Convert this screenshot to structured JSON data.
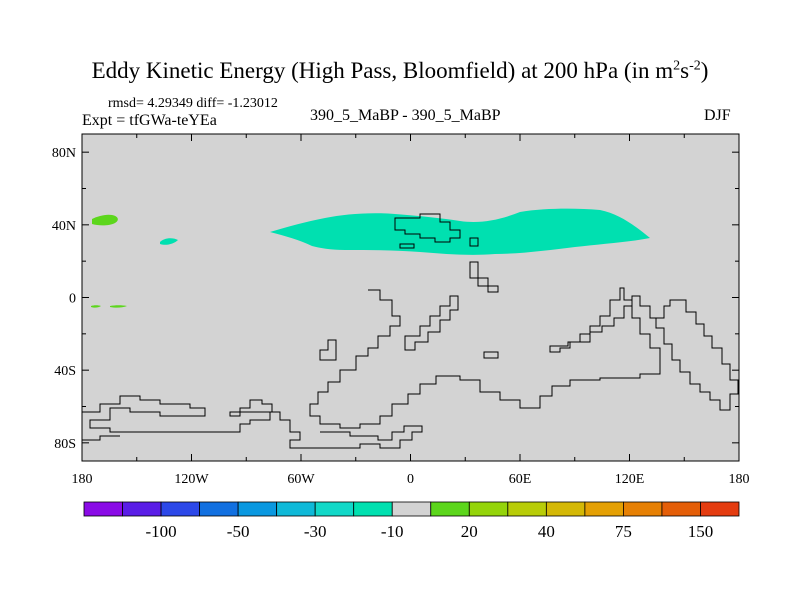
{
  "chart_data": {
    "type": "contour-map",
    "title_text": "Eddy Kinetic Energy (High Pass, Bloomfield) at 200 hPa (in m",
    "title_sup1": "2",
    "title_mid": "s",
    "title_sup2": "-2",
    "title_end": ")",
    "rmsd_text": "rmsd= 4.29349 diff= -1.23012",
    "expt_text": "Expt = tfGWa-teYEa",
    "center_label": "390_5_MaBP - 390_5_MaBP",
    "season": "DJF",
    "x_range": [
      -180,
      180
    ],
    "y_range": [
      -90,
      90
    ],
    "x_ticks": [
      {
        "value": -180,
        "label": "180"
      },
      {
        "value": -120,
        "label": "120W"
      },
      {
        "value": -60,
        "label": "60W"
      },
      {
        "value": 0,
        "label": "0"
      },
      {
        "value": 60,
        "label": "60E"
      },
      {
        "value": 120,
        "label": "120E"
      },
      {
        "value": 180,
        "label": "180"
      }
    ],
    "y_ticks": [
      {
        "value": 80,
        "label": "80N"
      },
      {
        "value": 40,
        "label": "40N"
      },
      {
        "value": 0,
        "label": "0"
      },
      {
        "value": -40,
        "label": "40S"
      },
      {
        "value": -80,
        "label": "80S"
      }
    ],
    "background_color": "#d3d3d3",
    "colorbar": {
      "colors": [
        "#8a0be6",
        "#5a1de6",
        "#2c48e8",
        "#1270e0",
        "#0a98e0",
        "#0fb9d8",
        "#12d8c8",
        "#00e0b0",
        "#d3d3d3",
        "#5cd61c",
        "#94d40a",
        "#b8cc08",
        "#d4b806",
        "#e4a004",
        "#e68004",
        "#e45e08",
        "#e43c10"
      ],
      "labels": [
        {
          "index": 2,
          "text": "-100"
        },
        {
          "index": 4,
          "text": "-50"
        },
        {
          "index": 6,
          "text": "-30"
        },
        {
          "index": 8,
          "text": "-10"
        },
        {
          "index": 10,
          "text": "20"
        },
        {
          "index": 12,
          "text": "40"
        },
        {
          "index": 14,
          "text": "75"
        },
        {
          "index": 16,
          "text": "150"
        }
      ]
    },
    "regions": [
      {
        "name": "negative-band-north-pacific-to-asia",
        "color": "#00e0b0",
        "approx_value": -15
      },
      {
        "name": "positive-patch-west-pacific",
        "color": "#5cd61c",
        "approx_value": 15
      }
    ]
  }
}
